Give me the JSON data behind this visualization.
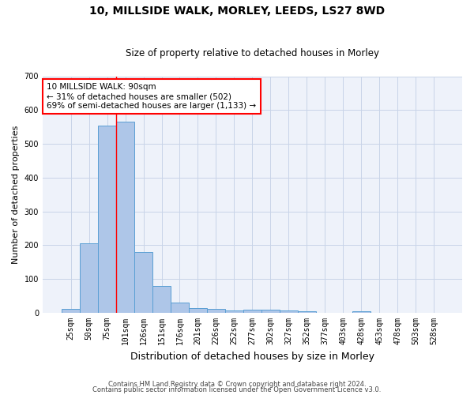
{
  "title1": "10, MILLSIDE WALK, MORLEY, LEEDS, LS27 8WD",
  "title2": "Size of property relative to detached houses in Morley",
  "xlabel": "Distribution of detached houses by size in Morley",
  "ylabel": "Number of detached properties",
  "footer1": "Contains HM Land Registry data © Crown copyright and database right 2024.",
  "footer2": "Contains public sector information licensed under the Open Government Licence v3.0.",
  "bin_labels": [
    "25sqm",
    "50sqm",
    "75sqm",
    "101sqm",
    "126sqm",
    "151sqm",
    "176sqm",
    "201sqm",
    "226sqm",
    "252sqm",
    "277sqm",
    "302sqm",
    "327sqm",
    "352sqm",
    "377sqm",
    "403sqm",
    "428sqm",
    "453sqm",
    "478sqm",
    "503sqm",
    "528sqm"
  ],
  "bin_values": [
    12,
    205,
    555,
    565,
    180,
    80,
    30,
    14,
    12,
    6,
    10,
    10,
    8,
    4,
    0,
    0,
    5,
    0,
    0,
    0,
    0
  ],
  "bar_color": "#aec6e8",
  "bar_edge_color": "#5a9fd4",
  "background_color": "#eef2fa",
  "grid_color": "#c8d4e8",
  "annotation_text_line1": "10 MILLSIDE WALK: 90sqm",
  "annotation_text_line2": "← 31% of detached houses are smaller (502)",
  "annotation_text_line3": "69% of semi-detached houses are larger (1,133) →",
  "annotation_box_color": "red",
  "red_line_x": 2.5,
  "ylim": [
    0,
    700
  ],
  "yticks": [
    0,
    100,
    200,
    300,
    400,
    500,
    600,
    700
  ],
  "title1_fontsize": 10,
  "title2_fontsize": 8.5,
  "xlabel_fontsize": 9,
  "ylabel_fontsize": 8,
  "tick_fontsize": 7,
  "footer_fontsize": 6,
  "annot_fontsize": 7.5
}
